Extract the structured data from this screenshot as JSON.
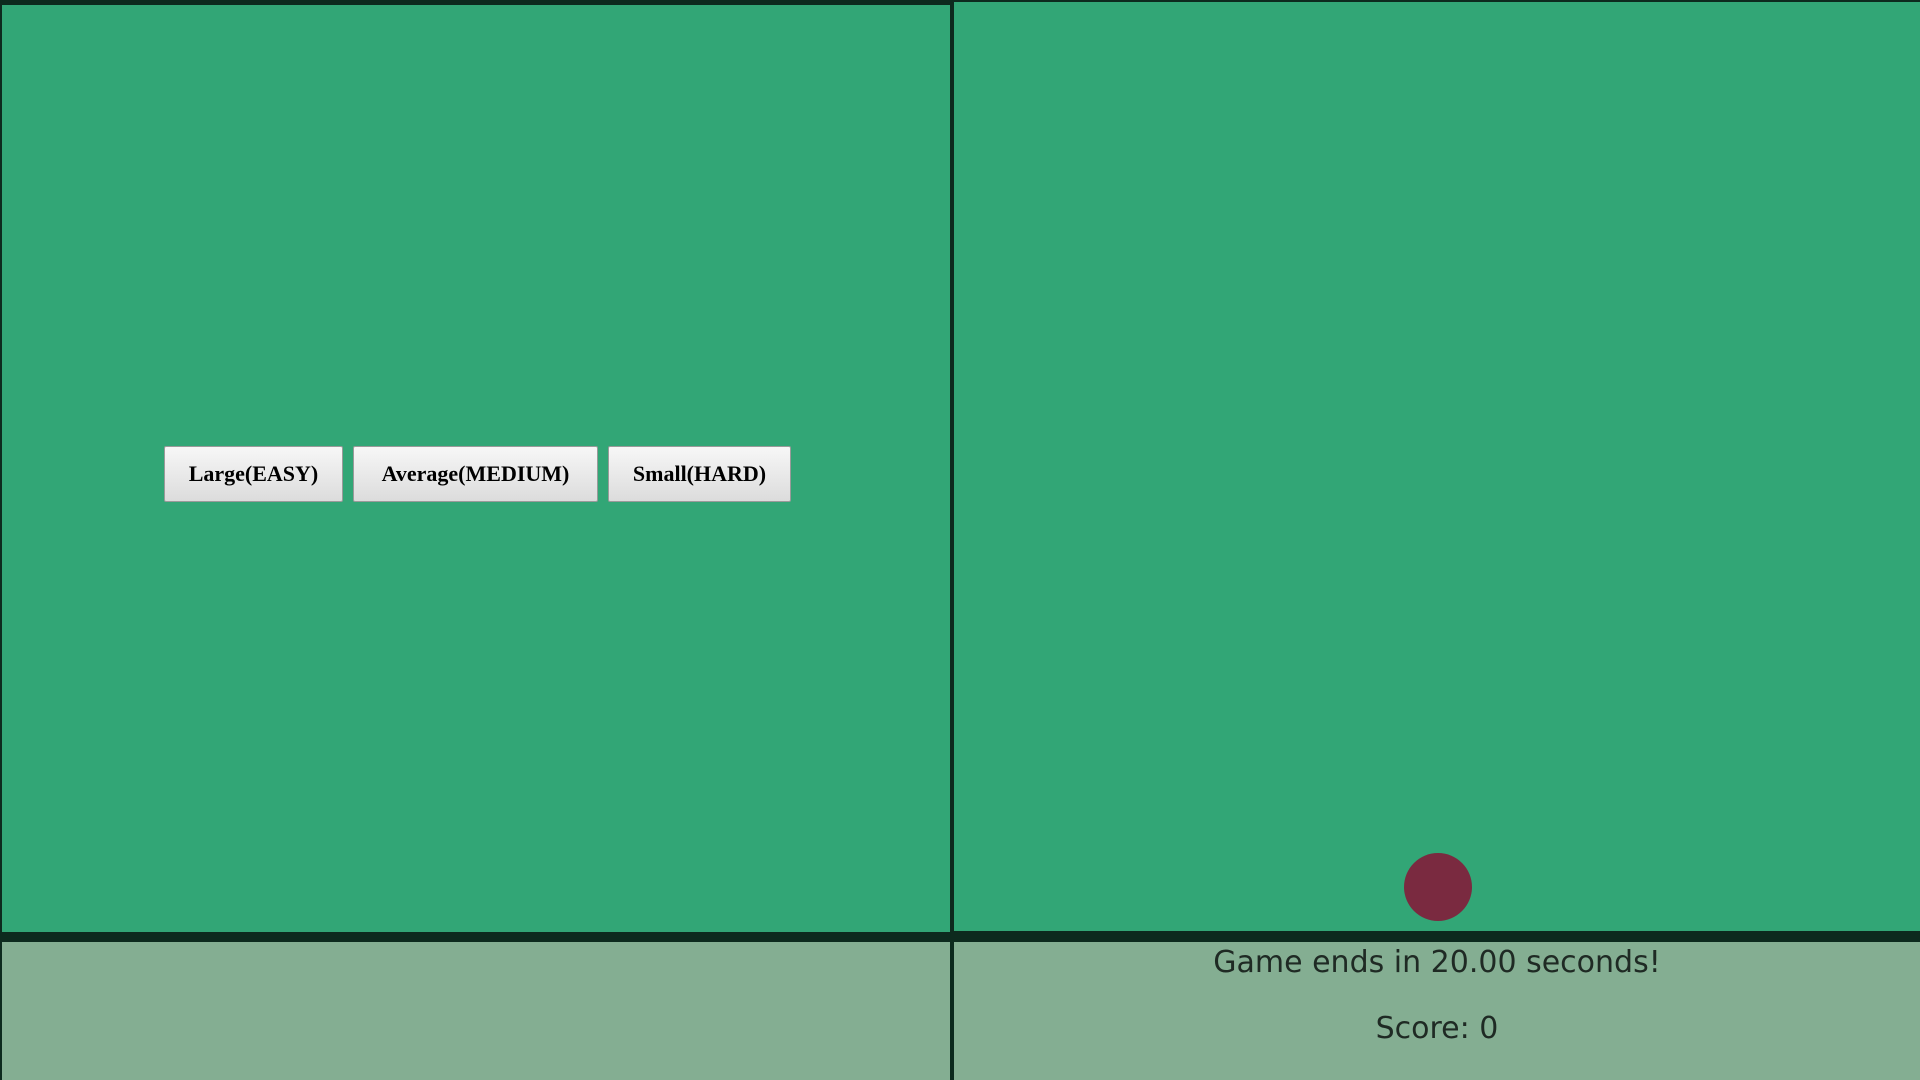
{
  "menu": {
    "buttons": [
      {
        "label": "Large(EASY)"
      },
      {
        "label": "Average(MEDIUM)"
      },
      {
        "label": "Small(HARD)"
      }
    ]
  },
  "game": {
    "timer_text": "Game ends in 20.00 seconds!",
    "score_text": "Score: 0"
  },
  "colors": {
    "playfield": "#32a676",
    "status_area": "#84ae92",
    "border": "#0d2a1e",
    "ball": "#7a2a40"
  }
}
